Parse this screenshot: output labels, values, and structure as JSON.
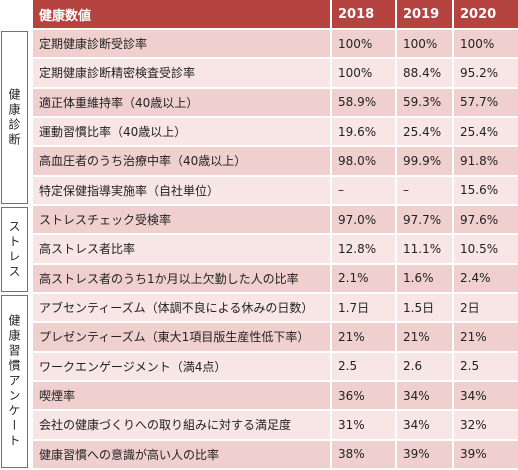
{
  "header": [
    "健康数値",
    "2018",
    "2019",
    "2020"
  ],
  "groups": [
    {
      "label": "健康診断",
      "rows": [
        [
          "定期健康診断受診率",
          "100%",
          "100%",
          "100%"
        ],
        [
          "定期健康診断精密検査受診率",
          "100%",
          "88.4%",
          "95.2%"
        ],
        [
          "適正体重維持率（40歳以上）",
          "58.9%",
          "59.3%",
          "57.7%"
        ],
        [
          "運動習慣比率（40歳以上）",
          "19.6%",
          "25.4%",
          "25.4%"
        ],
        [
          "高血圧者のうち治療中率（40歳以上）",
          "98.0%",
          "99.9%",
          "91.8%"
        ],
        [
          "特定保健指導実施率（自社単位）",
          "–",
          "–",
          "15.6%"
        ]
      ]
    },
    {
      "label": "ストレス",
      "rows": [
        [
          "ストレスチェック受検率",
          "97.0%",
          "97.7%",
          "97.6%"
        ],
        [
          "高ストレス者比率",
          "12.8%",
          "11.1%",
          "10.5%"
        ],
        [
          "高ストレス者のうち1か月以上欠勤した人の比率",
          "2.1%",
          "1.6%",
          "2.4%"
        ]
      ]
    },
    {
      "label": "健康習慣アンケート",
      "rows": [
        [
          "アブセンティーズム（体調不良による休みの日数）",
          "1.7日",
          "1.5日",
          "2日"
        ],
        [
          "プレゼンティーズム（東大1項目版生産性低下率）",
          "21%",
          "21%",
          "21%"
        ],
        [
          "ワークエンゲージメント（満4点）",
          "2.5",
          "2.6",
          "2.5"
        ],
        [
          "喫煙率",
          "36%",
          "34%",
          "34%"
        ],
        [
          "会社の健康づくりへの取り組みに対する満足度",
          "31%",
          "34%",
          "32%"
        ],
        [
          "健康習慣への意識が高い人の比率",
          "38%",
          "39%",
          "39%"
        ]
      ]
    }
  ]
}
